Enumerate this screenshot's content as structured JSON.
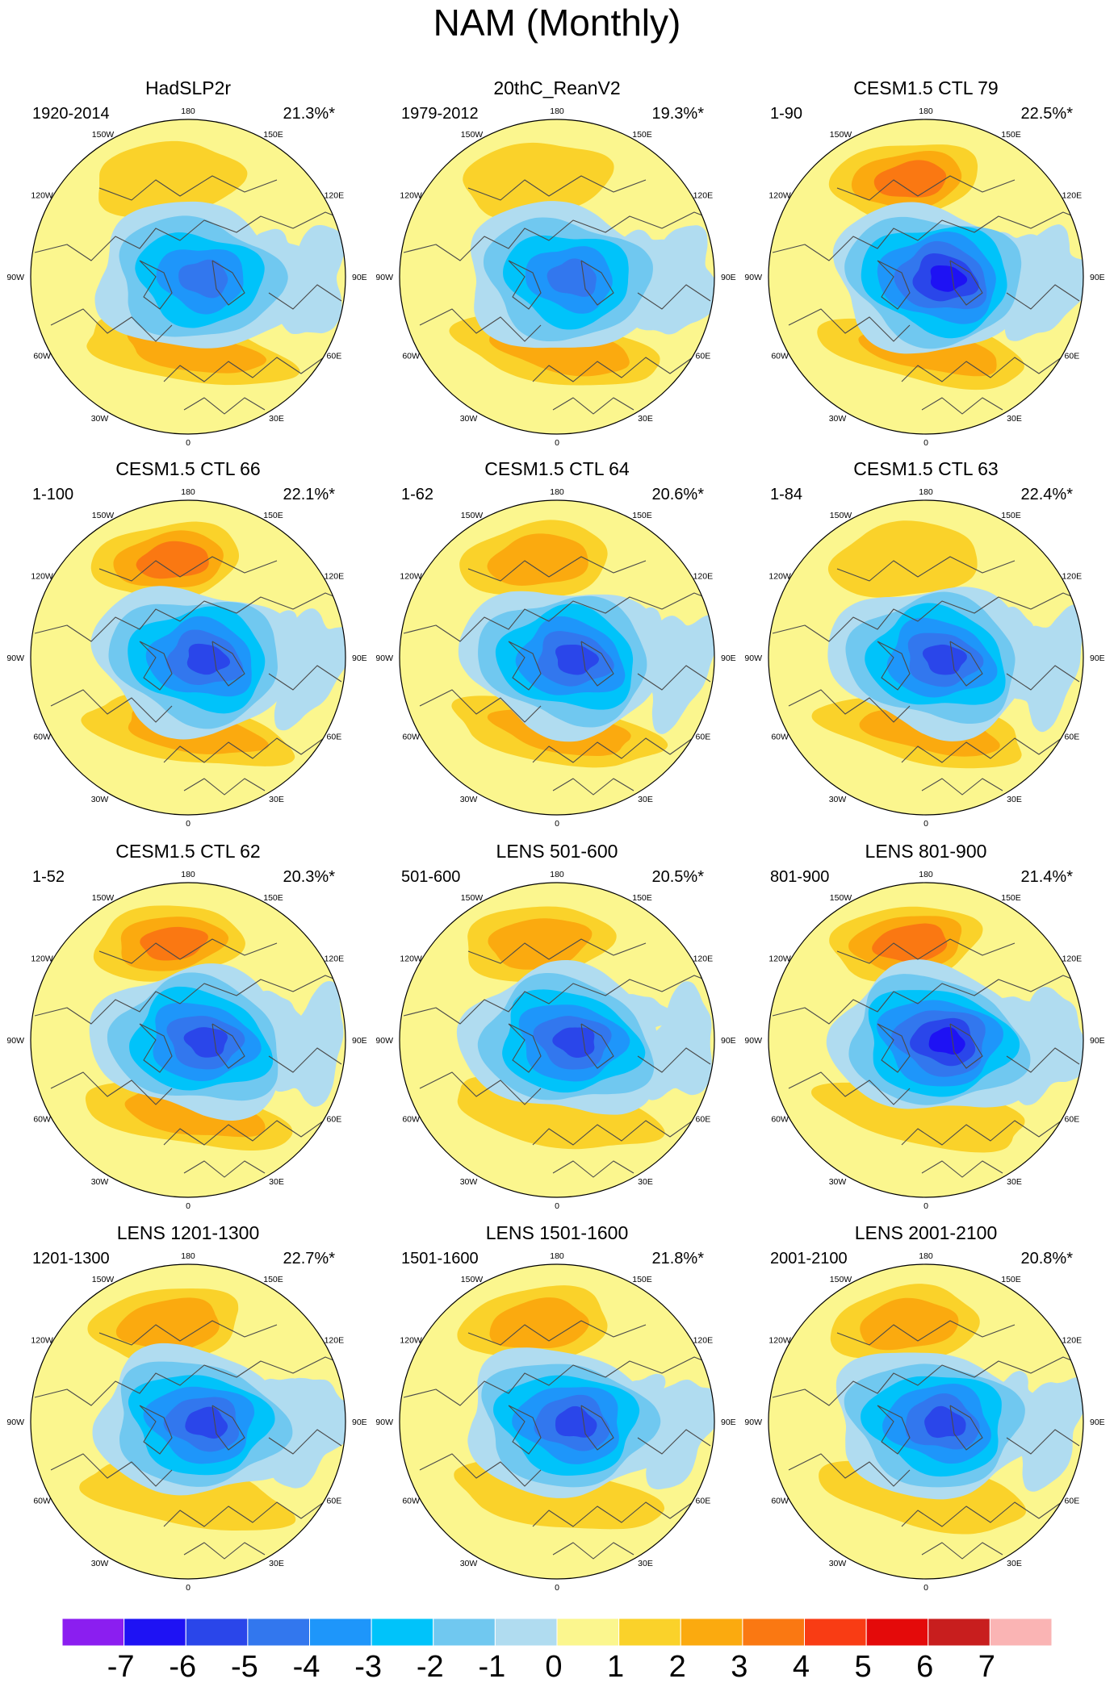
{
  "figure_title": "NAM (Monthly)",
  "chart_data": {
    "type": "heatmap",
    "projection": "north-polar-stereographic",
    "variable": "NAM (Monthly)",
    "longitude_labels": [
      "180",
      "150E",
      "120E",
      "90E",
      "60E",
      "30E",
      "0",
      "30W",
      "60W",
      "90W",
      "120W",
      "150W"
    ],
    "colorbar": {
      "tick_labels": [
        "-7",
        "-6",
        "-5",
        "-4",
        "-3",
        "-2",
        "-1",
        "0",
        "1",
        "2",
        "3",
        "4",
        "5",
        "6",
        "7"
      ],
      "colors": [
        "#8b1ef0",
        "#1e12f4",
        "#2a46ea",
        "#3277ee",
        "#1e96fa",
        "#00c3fa",
        "#70c8f0",
        "#b0dcf0",
        "#fbf68e",
        "#fad22a",
        "#fbaa0f",
        "#fa7812",
        "#f93c14",
        "#e40a0a",
        "#c81e1e",
        "#fab4b4"
      ],
      "levels": [
        -7,
        -6,
        -5,
        -4,
        -3,
        -2,
        -1,
        0,
        1,
        2,
        3,
        4,
        5,
        6,
        7
      ]
    },
    "panels": [
      {
        "title": "HadSLP2r",
        "period": "1920-2014",
        "variance_explained": "21.3%*",
        "min_value": -4.8,
        "max_value": 2.4,
        "pacific_high": 1.6,
        "atlantic_high": 2.4
      },
      {
        "title": "20thC_ReanV2",
        "period": "1979-2012",
        "variance_explained": "19.3%*",
        "min_value": -5.0,
        "max_value": 2.6,
        "pacific_high": 1.6,
        "atlantic_high": 2.6
      },
      {
        "title": "CESM1.5 CTL 79",
        "period": "1-90",
        "variance_explained": "22.5%*",
        "min_value": -6.3,
        "max_value": 3.5,
        "pacific_high": 3.5,
        "atlantic_high": 2.5
      },
      {
        "title": "CESM1.5 CTL 66",
        "period": "1-100",
        "variance_explained": "22.1%*",
        "min_value": -5.4,
        "max_value": 3.5,
        "pacific_high": 3.5,
        "atlantic_high": 2.5
      },
      {
        "title": "CESM1.5 CTL 64",
        "period": "1-62",
        "variance_explained": "20.6%*",
        "min_value": -5.4,
        "max_value": 2.7,
        "pacific_high": 2.7,
        "atlantic_high": 2.5
      },
      {
        "title": "CESM1.5 CTL 63",
        "period": "1-84",
        "variance_explained": "22.4%*",
        "min_value": -5.6,
        "max_value": 2.5,
        "pacific_high": 1.8,
        "atlantic_high": 2.5
      },
      {
        "title": "CESM1.5 CTL 62",
        "period": "1-52",
        "variance_explained": "20.3%*",
        "min_value": -5.3,
        "max_value": 3.2,
        "pacific_high": 3.2,
        "atlantic_high": 2.6
      },
      {
        "title": "LENS 501-600",
        "period": "501-600",
        "variance_explained": "20.5%*",
        "min_value": -5.2,
        "max_value": 2.7,
        "pacific_high": 2.7,
        "atlantic_high": 1.7
      },
      {
        "title": "LENS 801-900",
        "period": "801-900",
        "variance_explained": "21.4%*",
        "min_value": -6.2,
        "max_value": 3.6,
        "pacific_high": 3.6,
        "atlantic_high": 1.6
      },
      {
        "title": "LENS 1201-1300",
        "period": "1201-1300",
        "variance_explained": "22.7%*",
        "min_value": -5.5,
        "max_value": 2.8,
        "pacific_high": 2.8,
        "atlantic_high": 1.7
      },
      {
        "title": "LENS 1501-1600",
        "period": "1501-1600",
        "variance_explained": "21.8%*",
        "min_value": -6.0,
        "max_value": 2.6,
        "pacific_high": 2.6,
        "atlantic_high": 1.8
      },
      {
        "title": "LENS 2001-2100",
        "period": "2001-2100",
        "variance_explained": "20.8%*",
        "min_value": -5.2,
        "max_value": 2.6,
        "pacific_high": 2.6,
        "atlantic_high": 1.5
      }
    ]
  }
}
